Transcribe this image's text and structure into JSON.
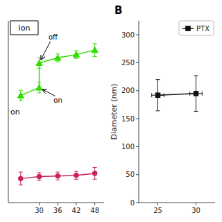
{
  "chart_data": [
    {
      "type": "line",
      "series": [
        {
          "x": [
            30,
            30
          ],
          "values": [
            232,
            270
          ],
          "color": "#33dd00",
          "marker": "none"
        },
        {
          "x": [
            30,
            36,
            42,
            48
          ],
          "values": [
            270,
            278,
            283,
            290
          ],
          "yerr": [
            8,
            6,
            6,
            10
          ],
          "color": "#33dd00",
          "marker": "triangle"
        },
        {
          "x": [
            24,
            30
          ],
          "values": [
            220,
            232
          ],
          "yerr": [
            8,
            8
          ],
          "color": "#33dd00",
          "marker": "triangle"
        },
        {
          "x": [
            24,
            30,
            36,
            42,
            48
          ],
          "values": [
            92,
            95,
            96,
            97,
            100
          ],
          "yerr": [
            10,
            6,
            6,
            6,
            9
          ],
          "color": "#cc2255",
          "marker": "circle"
        }
      ],
      "xlim": [
        20,
        51
      ],
      "xticks": [
        30,
        36,
        42,
        48
      ],
      "ylim": [
        55,
        335
      ],
      "tick_labels": "x",
      "grid": false,
      "annotations": [
        {
          "text": "off",
          "x": 30,
          "y": 270
        },
        {
          "text": "on",
          "x": 30,
          "y": 232
        },
        {
          "text": "ion"
        },
        {
          "text": "on"
        }
      ]
    },
    {
      "type": "line",
      "title": "B",
      "y_label": "Diameter (nm)",
      "series": [
        {
          "name": "PTX",
          "x": [
            25,
            30
          ],
          "values": [
            192,
            195
          ],
          "xerr": [
            0.8,
            0.8
          ],
          "yerr": [
            28,
            32
          ],
          "color": "#111111",
          "marker": "square"
        }
      ],
      "xlim": [
        22.5,
        32.5
      ],
      "xticks": [
        25,
        30
      ],
      "ylim": [
        0,
        325
      ],
      "yticks": [
        0,
        50,
        100,
        150,
        200,
        250,
        300
      ],
      "legend": "upper right",
      "grid": false
    }
  ]
}
